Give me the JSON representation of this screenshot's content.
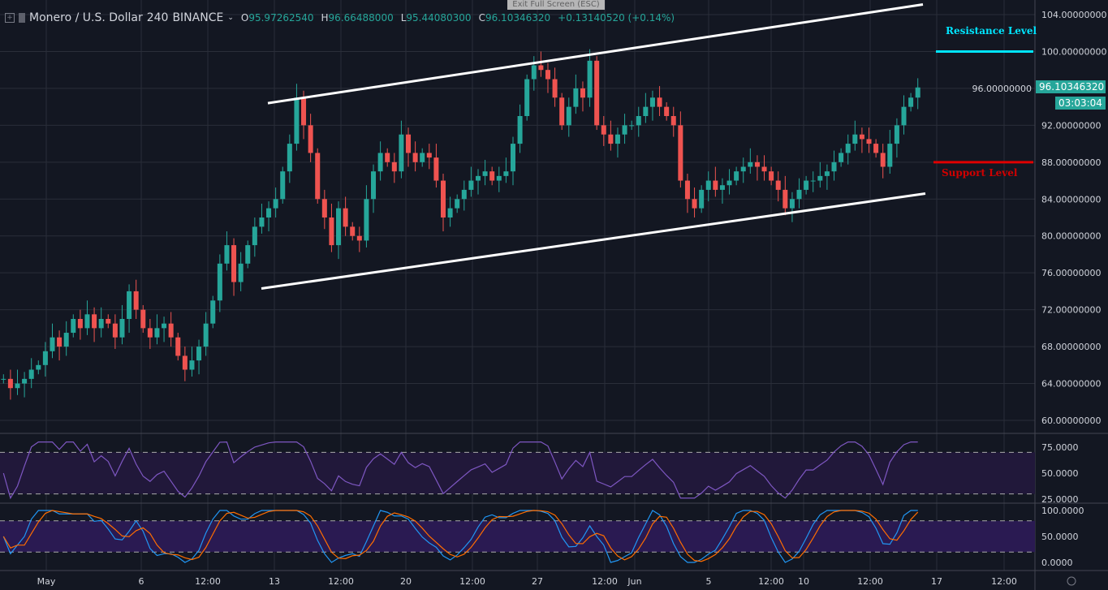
{
  "header": {
    "symbol": "Monero / U.S. Dollar",
    "interval": "240",
    "exchange": "BINANCE",
    "open_label": "O",
    "open": "95.97262540",
    "high_label": "H",
    "high": "96.66488000",
    "low_label": "L",
    "low": "95.44080300",
    "close_label": "C",
    "close": "96.10346320",
    "change": "+0.13140520 (+0.14%)"
  },
  "exit_fullscreen": "Exit Full Screen (ESC)",
  "last_price": "96.10346320",
  "countdown": "03:03:04",
  "annotations": {
    "resistance_label": "Resistance Level",
    "support_label": "Support Level"
  },
  "colors": {
    "background": "#131722",
    "up": "#26a69a",
    "down": "#ef5350",
    "resistance": "#00e5ff",
    "support": "#e00000",
    "rsi": "#7e57c2",
    "stoch_k": "#2196f3",
    "stoch_d": "#ff6d00"
  },
  "chart_data": {
    "type": "candlestick",
    "price_axis": {
      "ylim": [
        58,
        105
      ],
      "ticks": [
        "104.00000000",
        "100.00000000",
        "96.00000000",
        "92.00000000",
        "88.00000000",
        "84.00000000",
        "80.00000000",
        "76.00000000",
        "72.00000000",
        "68.00000000",
        "64.00000000",
        "60.00000000"
      ]
    },
    "time_axis": {
      "ticks": [
        "May",
        "6",
        "12:00",
        "13",
        "12:00",
        "20",
        "12:00",
        "27",
        "12:00",
        "Jun",
        "5",
        "12:00",
        "10",
        "12:00",
        "17",
        "12:00"
      ]
    },
    "close": [
      64.5,
      63.5,
      64,
      64.5,
      65.5,
      66,
      67.5,
      69,
      68,
      69.5,
      71,
      70,
      71.5,
      70,
      71,
      70.5,
      69,
      71,
      74,
      72,
      70,
      69,
      70,
      70.5,
      69,
      67,
      65.5,
      66.5,
      68,
      70.5,
      73,
      77,
      79,
      75,
      77,
      79,
      81,
      82,
      83,
      84,
      87,
      90,
      95,
      92,
      89,
      84,
      82,
      79,
      83,
      81,
      80,
      79.5,
      84,
      87,
      89,
      88,
      87,
      91,
      89,
      88,
      89,
      88.5,
      86,
      82,
      83,
      84,
      85,
      86,
      86.5,
      87,
      86,
      86.5,
      87,
      90,
      93,
      97,
      98.5,
      98,
      97,
      95,
      92,
      94,
      96,
      95,
      99,
      92,
      91,
      90,
      91,
      92,
      92,
      93,
      94,
      95,
      94,
      93,
      92,
      86,
      84,
      83,
      85,
      86,
      85,
      85.5,
      86,
      87,
      87.5,
      88,
      87.5,
      87,
      86,
      85,
      83,
      84,
      85,
      86,
      86,
      86.5,
      87,
      88,
      89,
      90,
      91,
      90.5,
      90,
      89,
      87.5,
      90,
      92,
      94,
      95,
      96.1
    ],
    "resistance_level": 100,
    "support_level": 88,
    "channel_upper": [
      94.4,
      105.1
    ],
    "channel_lower": [
      74.3,
      84.6
    ],
    "rsi": {
      "axis_ticks": [
        "75.0000",
        "50.0000",
        "25.0000"
      ],
      "bands": [
        70,
        30
      ]
    },
    "stochastic": {
      "axis_ticks": [
        "100.0000",
        "50.0000",
        "0.0000"
      ],
      "bands": [
        80,
        20
      ]
    }
  }
}
